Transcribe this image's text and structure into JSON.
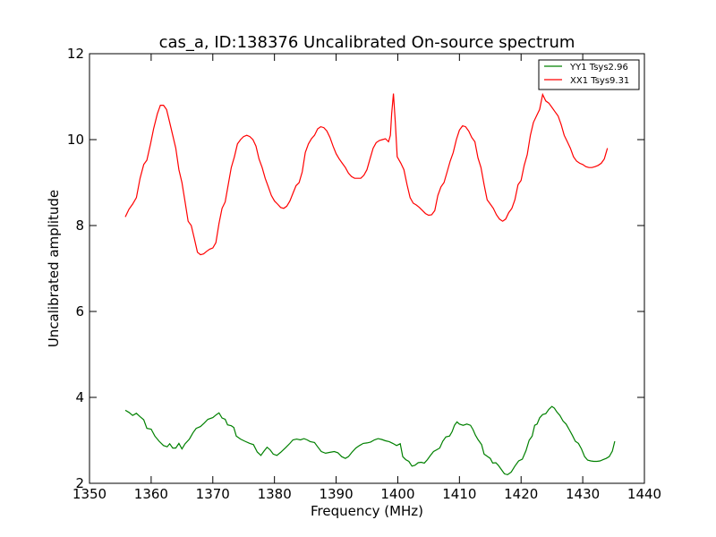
{
  "chart_data": {
    "type": "line",
    "title": "cas_a, ID:138376 Uncalibrated On-source spectrum",
    "xlabel": "Frequency (MHz)",
    "ylabel": "Uncalibrated amplitude",
    "xlim": [
      1350,
      1440
    ],
    "ylim": [
      2,
      12
    ],
    "xticks": [
      1350,
      1360,
      1370,
      1380,
      1390,
      1400,
      1410,
      1420,
      1430,
      1440
    ],
    "yticks": [
      2,
      4,
      6,
      8,
      10,
      12
    ],
    "grid": false,
    "legend_position": "top-right",
    "series": [
      {
        "name": "YY1 Tsys2.96",
        "color": "#008000",
        "points": [
          [
            1355.8,
            3.7
          ],
          [
            1356.4,
            3.65
          ],
          [
            1357.0,
            3.58
          ],
          [
            1357.6,
            3.63
          ],
          [
            1358.2,
            3.55
          ],
          [
            1358.8,
            3.48
          ],
          [
            1359.3,
            3.28
          ],
          [
            1360.0,
            3.26
          ],
          [
            1360.6,
            3.1
          ],
          [
            1361.3,
            2.98
          ],
          [
            1362.0,
            2.88
          ],
          [
            1362.6,
            2.85
          ],
          [
            1363.0,
            2.92
          ],
          [
            1363.5,
            2.82
          ],
          [
            1364.0,
            2.82
          ],
          [
            1364.5,
            2.93
          ],
          [
            1365.0,
            2.8
          ],
          [
            1365.5,
            2.92
          ],
          [
            1366.2,
            3.03
          ],
          [
            1366.8,
            3.18
          ],
          [
            1367.3,
            3.28
          ],
          [
            1368.0,
            3.32
          ],
          [
            1368.6,
            3.4
          ],
          [
            1369.2,
            3.49
          ],
          [
            1370.0,
            3.53
          ],
          [
            1370.6,
            3.6
          ],
          [
            1371.0,
            3.64
          ],
          [
            1371.5,
            3.52
          ],
          [
            1372.0,
            3.49
          ],
          [
            1372.4,
            3.36
          ],
          [
            1373.0,
            3.34
          ],
          [
            1373.4,
            3.3
          ],
          [
            1373.8,
            3.1
          ],
          [
            1374.5,
            3.03
          ],
          [
            1375.2,
            2.98
          ],
          [
            1376.0,
            2.93
          ],
          [
            1376.6,
            2.9
          ],
          [
            1377.2,
            2.73
          ],
          [
            1377.8,
            2.65
          ],
          [
            1378.3,
            2.75
          ],
          [
            1378.8,
            2.84
          ],
          [
            1379.3,
            2.78
          ],
          [
            1379.8,
            2.68
          ],
          [
            1380.4,
            2.65
          ],
          [
            1381.0,
            2.72
          ],
          [
            1381.8,
            2.83
          ],
          [
            1382.5,
            2.93
          ],
          [
            1383.0,
            3.01
          ],
          [
            1383.6,
            3.03
          ],
          [
            1384.2,
            3.01
          ],
          [
            1384.8,
            3.04
          ],
          [
            1385.3,
            3.01
          ],
          [
            1385.8,
            2.97
          ],
          [
            1386.5,
            2.95
          ],
          [
            1387.0,
            2.85
          ],
          [
            1387.6,
            2.74
          ],
          [
            1388.3,
            2.7
          ],
          [
            1389.0,
            2.72
          ],
          [
            1389.7,
            2.74
          ],
          [
            1390.3,
            2.71
          ],
          [
            1390.9,
            2.62
          ],
          [
            1391.5,
            2.58
          ],
          [
            1392.0,
            2.62
          ],
          [
            1392.6,
            2.73
          ],
          [
            1393.2,
            2.82
          ],
          [
            1393.8,
            2.88
          ],
          [
            1394.4,
            2.93
          ],
          [
            1395.0,
            2.94
          ],
          [
            1395.6,
            2.96
          ],
          [
            1396.2,
            3.01
          ],
          [
            1396.8,
            3.04
          ],
          [
            1397.4,
            3.02
          ],
          [
            1398.0,
            2.99
          ],
          [
            1398.6,
            2.97
          ],
          [
            1399.2,
            2.93
          ],
          [
            1399.8,
            2.88
          ],
          [
            1400.4,
            2.92
          ],
          [
            1400.8,
            2.62
          ],
          [
            1401.3,
            2.55
          ],
          [
            1401.8,
            2.51
          ],
          [
            1402.3,
            2.4
          ],
          [
            1402.8,
            2.42
          ],
          [
            1403.3,
            2.48
          ],
          [
            1403.8,
            2.49
          ],
          [
            1404.3,
            2.47
          ],
          [
            1404.8,
            2.55
          ],
          [
            1405.3,
            2.65
          ],
          [
            1405.8,
            2.74
          ],
          [
            1406.3,
            2.78
          ],
          [
            1406.8,
            2.82
          ],
          [
            1407.3,
            2.98
          ],
          [
            1407.8,
            3.08
          ],
          [
            1408.4,
            3.1
          ],
          [
            1408.8,
            3.2
          ],
          [
            1409.2,
            3.35
          ],
          [
            1409.6,
            3.43
          ],
          [
            1410.0,
            3.38
          ],
          [
            1410.6,
            3.35
          ],
          [
            1411.2,
            3.38
          ],
          [
            1411.8,
            3.35
          ],
          [
            1412.2,
            3.25
          ],
          [
            1412.6,
            3.12
          ],
          [
            1413.0,
            3.02
          ],
          [
            1413.6,
            2.9
          ],
          [
            1414.0,
            2.68
          ],
          [
            1414.6,
            2.62
          ],
          [
            1415.0,
            2.58
          ],
          [
            1415.4,
            2.47
          ],
          [
            1415.9,
            2.48
          ],
          [
            1416.3,
            2.42
          ],
          [
            1416.8,
            2.32
          ],
          [
            1417.3,
            2.22
          ],
          [
            1417.8,
            2.2
          ],
          [
            1418.4,
            2.26
          ],
          [
            1419.0,
            2.4
          ],
          [
            1419.6,
            2.52
          ],
          [
            1420.2,
            2.56
          ],
          [
            1420.8,
            2.76
          ],
          [
            1421.3,
            3.0
          ],
          [
            1421.8,
            3.1
          ],
          [
            1422.2,
            3.35
          ],
          [
            1422.6,
            3.38
          ],
          [
            1423.0,
            3.52
          ],
          [
            1423.5,
            3.6
          ],
          [
            1424.0,
            3.62
          ],
          [
            1424.5,
            3.72
          ],
          [
            1425.0,
            3.79
          ],
          [
            1425.4,
            3.75
          ],
          [
            1425.8,
            3.66
          ],
          [
            1426.3,
            3.58
          ],
          [
            1426.8,
            3.45
          ],
          [
            1427.3,
            3.38
          ],
          [
            1427.8,
            3.25
          ],
          [
            1428.3,
            3.12
          ],
          [
            1428.8,
            2.98
          ],
          [
            1429.3,
            2.93
          ],
          [
            1429.8,
            2.8
          ],
          [
            1430.3,
            2.62
          ],
          [
            1430.8,
            2.54
          ],
          [
            1431.3,
            2.52
          ],
          [
            1431.8,
            2.51
          ],
          [
            1432.3,
            2.51
          ],
          [
            1432.8,
            2.52
          ],
          [
            1433.3,
            2.55
          ],
          [
            1433.8,
            2.58
          ],
          [
            1434.3,
            2.62
          ],
          [
            1434.8,
            2.75
          ],
          [
            1435.2,
            2.98
          ]
        ]
      },
      {
        "name": "XX1 Tsys9.31",
        "color": "#ff0000",
        "points": [
          [
            1355.8,
            8.2
          ],
          [
            1356.4,
            8.38
          ],
          [
            1357.0,
            8.5
          ],
          [
            1357.6,
            8.65
          ],
          [
            1358.2,
            9.1
          ],
          [
            1358.8,
            9.42
          ],
          [
            1359.3,
            9.52
          ],
          [
            1359.9,
            9.9
          ],
          [
            1360.4,
            10.25
          ],
          [
            1361.0,
            10.6
          ],
          [
            1361.5,
            10.8
          ],
          [
            1362.0,
            10.8
          ],
          [
            1362.5,
            10.7
          ],
          [
            1363.0,
            10.4
          ],
          [
            1363.5,
            10.1
          ],
          [
            1364.0,
            9.8
          ],
          [
            1364.5,
            9.3
          ],
          [
            1365.0,
            9.0
          ],
          [
            1365.5,
            8.55
          ],
          [
            1366.0,
            8.1
          ],
          [
            1366.5,
            8.0
          ],
          [
            1367.0,
            7.7
          ],
          [
            1367.5,
            7.38
          ],
          [
            1368.0,
            7.32
          ],
          [
            1368.5,
            7.34
          ],
          [
            1369.0,
            7.4
          ],
          [
            1369.5,
            7.45
          ],
          [
            1370.0,
            7.48
          ],
          [
            1370.5,
            7.6
          ],
          [
            1371.0,
            8.05
          ],
          [
            1371.5,
            8.4
          ],
          [
            1372.0,
            8.55
          ],
          [
            1372.5,
            8.95
          ],
          [
            1373.0,
            9.35
          ],
          [
            1373.5,
            9.6
          ],
          [
            1374.0,
            9.9
          ],
          [
            1374.5,
            10.0
          ],
          [
            1375.0,
            10.07
          ],
          [
            1375.5,
            10.1
          ],
          [
            1376.0,
            10.07
          ],
          [
            1376.5,
            10.0
          ],
          [
            1377.0,
            9.85
          ],
          [
            1377.5,
            9.55
          ],
          [
            1378.0,
            9.35
          ],
          [
            1378.5,
            9.1
          ],
          [
            1379.0,
            8.9
          ],
          [
            1379.5,
            8.7
          ],
          [
            1380.0,
            8.57
          ],
          [
            1380.5,
            8.5
          ],
          [
            1381.0,
            8.42
          ],
          [
            1381.5,
            8.4
          ],
          [
            1382.0,
            8.45
          ],
          [
            1382.5,
            8.57
          ],
          [
            1383.0,
            8.75
          ],
          [
            1383.5,
            8.93
          ],
          [
            1384.0,
            9.0
          ],
          [
            1384.5,
            9.25
          ],
          [
            1385.0,
            9.7
          ],
          [
            1385.5,
            9.9
          ],
          [
            1386.0,
            10.02
          ],
          [
            1386.5,
            10.1
          ],
          [
            1387.0,
            10.25
          ],
          [
            1387.5,
            10.3
          ],
          [
            1388.0,
            10.28
          ],
          [
            1388.5,
            10.2
          ],
          [
            1389.0,
            10.05
          ],
          [
            1389.5,
            9.85
          ],
          [
            1390.0,
            9.67
          ],
          [
            1390.5,
            9.55
          ],
          [
            1391.0,
            9.45
          ],
          [
            1391.5,
            9.35
          ],
          [
            1392.0,
            9.22
          ],
          [
            1392.5,
            9.14
          ],
          [
            1393.0,
            9.1
          ],
          [
            1393.5,
            9.1
          ],
          [
            1394.0,
            9.1
          ],
          [
            1394.5,
            9.17
          ],
          [
            1395.0,
            9.3
          ],
          [
            1395.5,
            9.55
          ],
          [
            1396.0,
            9.8
          ],
          [
            1396.5,
            9.93
          ],
          [
            1397.0,
            9.98
          ],
          [
            1397.5,
            10.0
          ],
          [
            1398.0,
            10.02
          ],
          [
            1398.5,
            9.95
          ],
          [
            1398.8,
            10.1
          ],
          [
            1399.0,
            10.6
          ],
          [
            1399.3,
            11.07
          ],
          [
            1399.6,
            10.4
          ],
          [
            1399.9,
            9.6
          ],
          [
            1400.5,
            9.45
          ],
          [
            1401.0,
            9.3
          ],
          [
            1401.5,
            8.95
          ],
          [
            1402.0,
            8.65
          ],
          [
            1402.5,
            8.52
          ],
          [
            1403.0,
            8.48
          ],
          [
            1403.5,
            8.42
          ],
          [
            1404.0,
            8.35
          ],
          [
            1404.5,
            8.28
          ],
          [
            1405.0,
            8.24
          ],
          [
            1405.5,
            8.25
          ],
          [
            1406.0,
            8.35
          ],
          [
            1406.5,
            8.7
          ],
          [
            1407.0,
            8.9
          ],
          [
            1407.5,
            9.0
          ],
          [
            1408.0,
            9.25
          ],
          [
            1408.5,
            9.5
          ],
          [
            1409.0,
            9.7
          ],
          [
            1409.5,
            10.0
          ],
          [
            1410.0,
            10.22
          ],
          [
            1410.5,
            10.32
          ],
          [
            1411.0,
            10.3
          ],
          [
            1411.5,
            10.2
          ],
          [
            1412.0,
            10.05
          ],
          [
            1412.5,
            9.95
          ],
          [
            1413.0,
            9.58
          ],
          [
            1413.5,
            9.35
          ],
          [
            1414.0,
            8.95
          ],
          [
            1414.5,
            8.6
          ],
          [
            1415.0,
            8.5
          ],
          [
            1415.5,
            8.4
          ],
          [
            1416.0,
            8.25
          ],
          [
            1416.5,
            8.15
          ],
          [
            1417.0,
            8.1
          ],
          [
            1417.5,
            8.15
          ],
          [
            1418.0,
            8.3
          ],
          [
            1418.5,
            8.4
          ],
          [
            1419.0,
            8.6
          ],
          [
            1419.5,
            8.95
          ],
          [
            1420.0,
            9.05
          ],
          [
            1420.5,
            9.4
          ],
          [
            1421.0,
            9.65
          ],
          [
            1421.5,
            10.1
          ],
          [
            1422.0,
            10.4
          ],
          [
            1422.5,
            10.55
          ],
          [
            1423.0,
            10.7
          ],
          [
            1423.5,
            11.05
          ],
          [
            1424.0,
            10.9
          ],
          [
            1424.5,
            10.85
          ],
          [
            1425.0,
            10.75
          ],
          [
            1425.5,
            10.65
          ],
          [
            1426.0,
            10.55
          ],
          [
            1426.5,
            10.35
          ],
          [
            1427.0,
            10.1
          ],
          [
            1427.5,
            9.95
          ],
          [
            1428.0,
            9.8
          ],
          [
            1428.5,
            9.6
          ],
          [
            1429.0,
            9.5
          ],
          [
            1429.5,
            9.45
          ],
          [
            1430.0,
            9.42
          ],
          [
            1430.5,
            9.37
          ],
          [
            1431.0,
            9.35
          ],
          [
            1431.5,
            9.35
          ],
          [
            1432.0,
            9.37
          ],
          [
            1432.5,
            9.4
          ],
          [
            1433.0,
            9.45
          ],
          [
            1433.5,
            9.55
          ],
          [
            1434.0,
            9.8
          ]
        ]
      }
    ]
  }
}
